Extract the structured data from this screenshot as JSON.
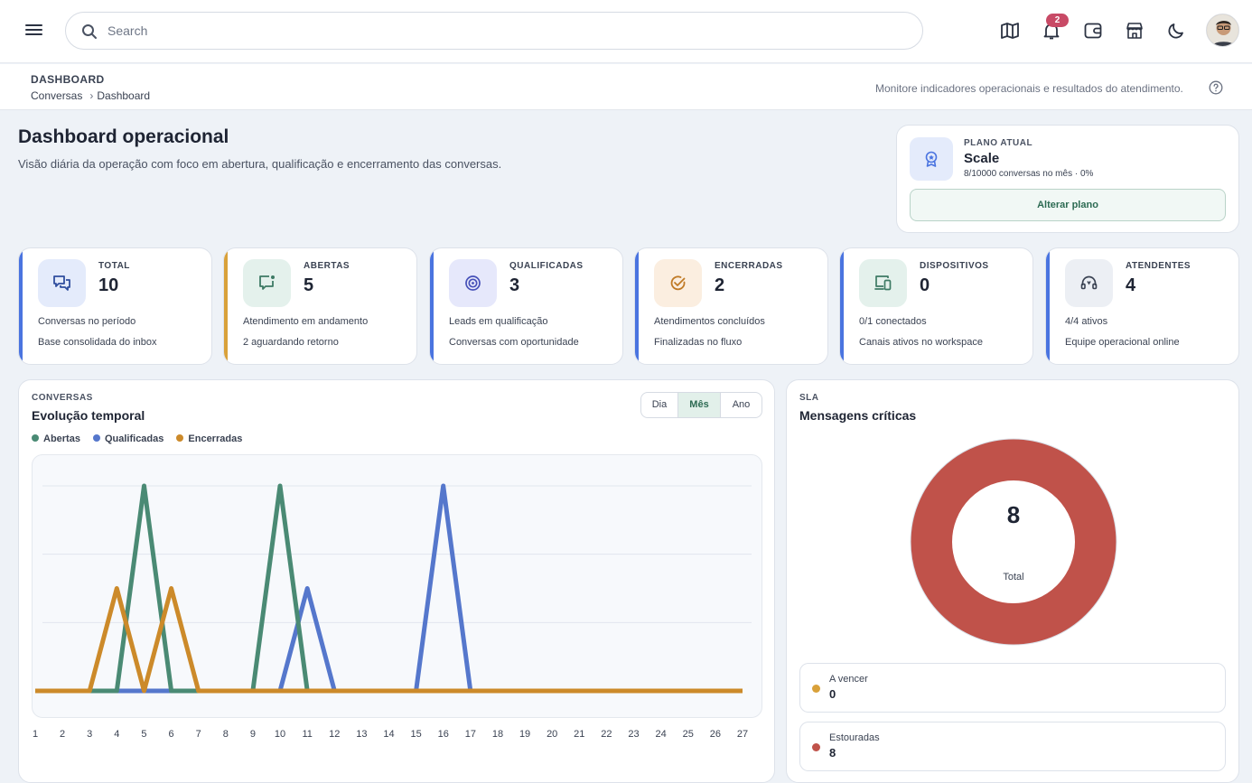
{
  "topbar": {
    "search_placeholder": "Search",
    "notification_count": "2"
  },
  "breadcrumb": {
    "title": "DASHBOARD",
    "items": [
      "Conversas",
      "Dashboard"
    ],
    "hint": "Monitore indicadores operacionais e resultados do atendimento."
  },
  "header": {
    "title": "Dashboard operacional",
    "subtitle": "Visão diária da operação com foco em abertura, qualificação e encerramento das conversas."
  },
  "plan": {
    "label": "PLANO ATUAL",
    "name": "Scale",
    "usage": "8/10000 conversas no mês · 0%",
    "button": "Alterar plano"
  },
  "stats": [
    {
      "label": "TOTAL",
      "value": "10",
      "desc1": "Conversas no período",
      "desc2": "Base consolidada do inbox",
      "accent": "#4a74e0",
      "icon": "chat-bubbles-icon"
    },
    {
      "label": "ABERTAS",
      "value": "5",
      "desc1": "Atendimento em andamento",
      "desc2": "2 aguardando retorno",
      "accent": "#d9a13a",
      "icon": "message-open-icon"
    },
    {
      "label": "QUALIFICADAS",
      "value": "3",
      "desc1": "Leads em qualificação",
      "desc2": "Conversas com oportunidade",
      "accent": "#4a74e0",
      "icon": "target-icon"
    },
    {
      "label": "ENCERRADAS",
      "value": "2",
      "desc1": "Atendimentos concluídos",
      "desc2": "Finalizadas no fluxo",
      "accent": "#4a74e0",
      "icon": "check-circle-icon"
    },
    {
      "label": "DISPOSITIVOS",
      "value": "0",
      "desc1": "0/1 conectados",
      "desc2": "Canais ativos no workspace",
      "accent": "#4a74e0",
      "icon": "devices-icon"
    },
    {
      "label": "ATENDENTES",
      "value": "4",
      "desc1": "4/4 ativos",
      "desc2": "Equipe operacional online",
      "accent": "#4a74e0",
      "icon": "headset-icon"
    }
  ],
  "conversas": {
    "kicker": "CONVERSAS",
    "title": "Evolução temporal",
    "periods": [
      "Dia",
      "Mês",
      "Ano"
    ],
    "active_period": "Mês"
  },
  "chart_data": {
    "type": "line",
    "x": [
      1,
      2,
      3,
      4,
      5,
      6,
      7,
      8,
      9,
      10,
      11,
      12,
      13,
      14,
      15,
      16,
      17,
      18,
      19,
      20,
      21,
      22,
      23,
      24,
      25,
      26,
      27
    ],
    "ylim": [
      0,
      3
    ],
    "grid": true,
    "legend_position": "top-left",
    "series": [
      {
        "name": "Abertas",
        "color": "#4a8a74",
        "values": [
          0,
          0,
          0,
          0,
          3,
          0,
          0,
          0,
          0,
          3,
          0,
          0,
          0,
          0,
          0,
          0,
          0,
          0,
          0,
          0,
          0,
          0,
          0,
          0,
          0,
          0,
          0
        ]
      },
      {
        "name": "Qualificadas",
        "color": "#5577cc",
        "values": [
          0,
          0,
          0,
          0,
          0,
          0,
          0,
          0,
          0,
          0,
          1.5,
          0,
          0,
          0,
          0,
          3,
          0,
          0,
          0,
          0,
          0,
          0,
          0,
          0,
          0,
          0,
          0
        ]
      },
      {
        "name": "Encerradas",
        "color": "#cc8a2a",
        "values": [
          0,
          0,
          0,
          1.5,
          0,
          1.5,
          0,
          0,
          0,
          0,
          0,
          0,
          0,
          0,
          0,
          0,
          0,
          0,
          0,
          0,
          0,
          0,
          0,
          0,
          0,
          0,
          0
        ]
      }
    ]
  },
  "sla": {
    "kicker": "SLA",
    "title": "Mensagens críticas",
    "total_value": "8",
    "total_label": "Total",
    "donut_color": "#c0524a",
    "items": [
      {
        "name": "A vencer",
        "value": "0",
        "color": "#d9a13a"
      },
      {
        "name": "Estouradas",
        "value": "8",
        "color": "#c0524a"
      }
    ]
  }
}
